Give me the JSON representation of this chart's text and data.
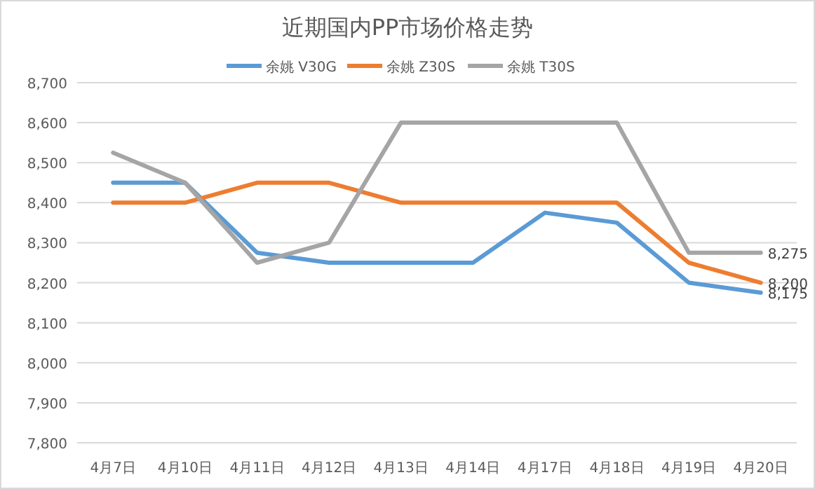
{
  "chart_data": {
    "type": "line",
    "title": "近期国内PP市场价格走势",
    "categories": [
      "4月7日",
      "4月10日",
      "4月11日",
      "4月12日",
      "4月13日",
      "4月14日",
      "4月17日",
      "4月18日",
      "4月19日",
      "4月20日"
    ],
    "series": [
      {
        "name": "余姚 V30G",
        "color": "#5b9bd5",
        "values": [
          8450,
          8450,
          8275,
          8250,
          8250,
          8250,
          8375,
          8350,
          8200,
          8175
        ],
        "value_labels": [
          null,
          null,
          null,
          null,
          null,
          null,
          null,
          null,
          null,
          "8,175"
        ]
      },
      {
        "name": "余姚 Z30S",
        "color": "#ed7d31",
        "values": [
          8400,
          8400,
          8450,
          8450,
          8400,
          8400,
          8400,
          8400,
          8250,
          8200
        ],
        "value_labels": [
          null,
          null,
          null,
          null,
          null,
          null,
          null,
          null,
          null,
          "8,200"
        ]
      },
      {
        "name": "余姚 T30S",
        "color": "#a5a5a5",
        "values": [
          8525,
          8450,
          8250,
          8300,
          8600,
          8600,
          8600,
          8600,
          8275,
          8275
        ],
        "value_labels": [
          null,
          null,
          null,
          null,
          null,
          null,
          null,
          null,
          null,
          "8,275"
        ]
      }
    ],
    "ylim": [
      7800,
      8700
    ],
    "yticks": [
      {
        "value": 7800,
        "label": "7,800"
      },
      {
        "value": 7900,
        "label": "7,900"
      },
      {
        "value": 8000,
        "label": "8,000"
      },
      {
        "value": 8100,
        "label": "8,100"
      },
      {
        "value": 8200,
        "label": "8,200"
      },
      {
        "value": 8300,
        "label": "8,300"
      },
      {
        "value": 8400,
        "label": "8,400"
      },
      {
        "value": 8500,
        "label": "8,500"
      },
      {
        "value": 8600,
        "label": "8,600"
      },
      {
        "value": 8700,
        "label": "8,700"
      }
    ],
    "grid": "y",
    "legend": "top",
    "marker": "none",
    "line_style": "solid"
  }
}
